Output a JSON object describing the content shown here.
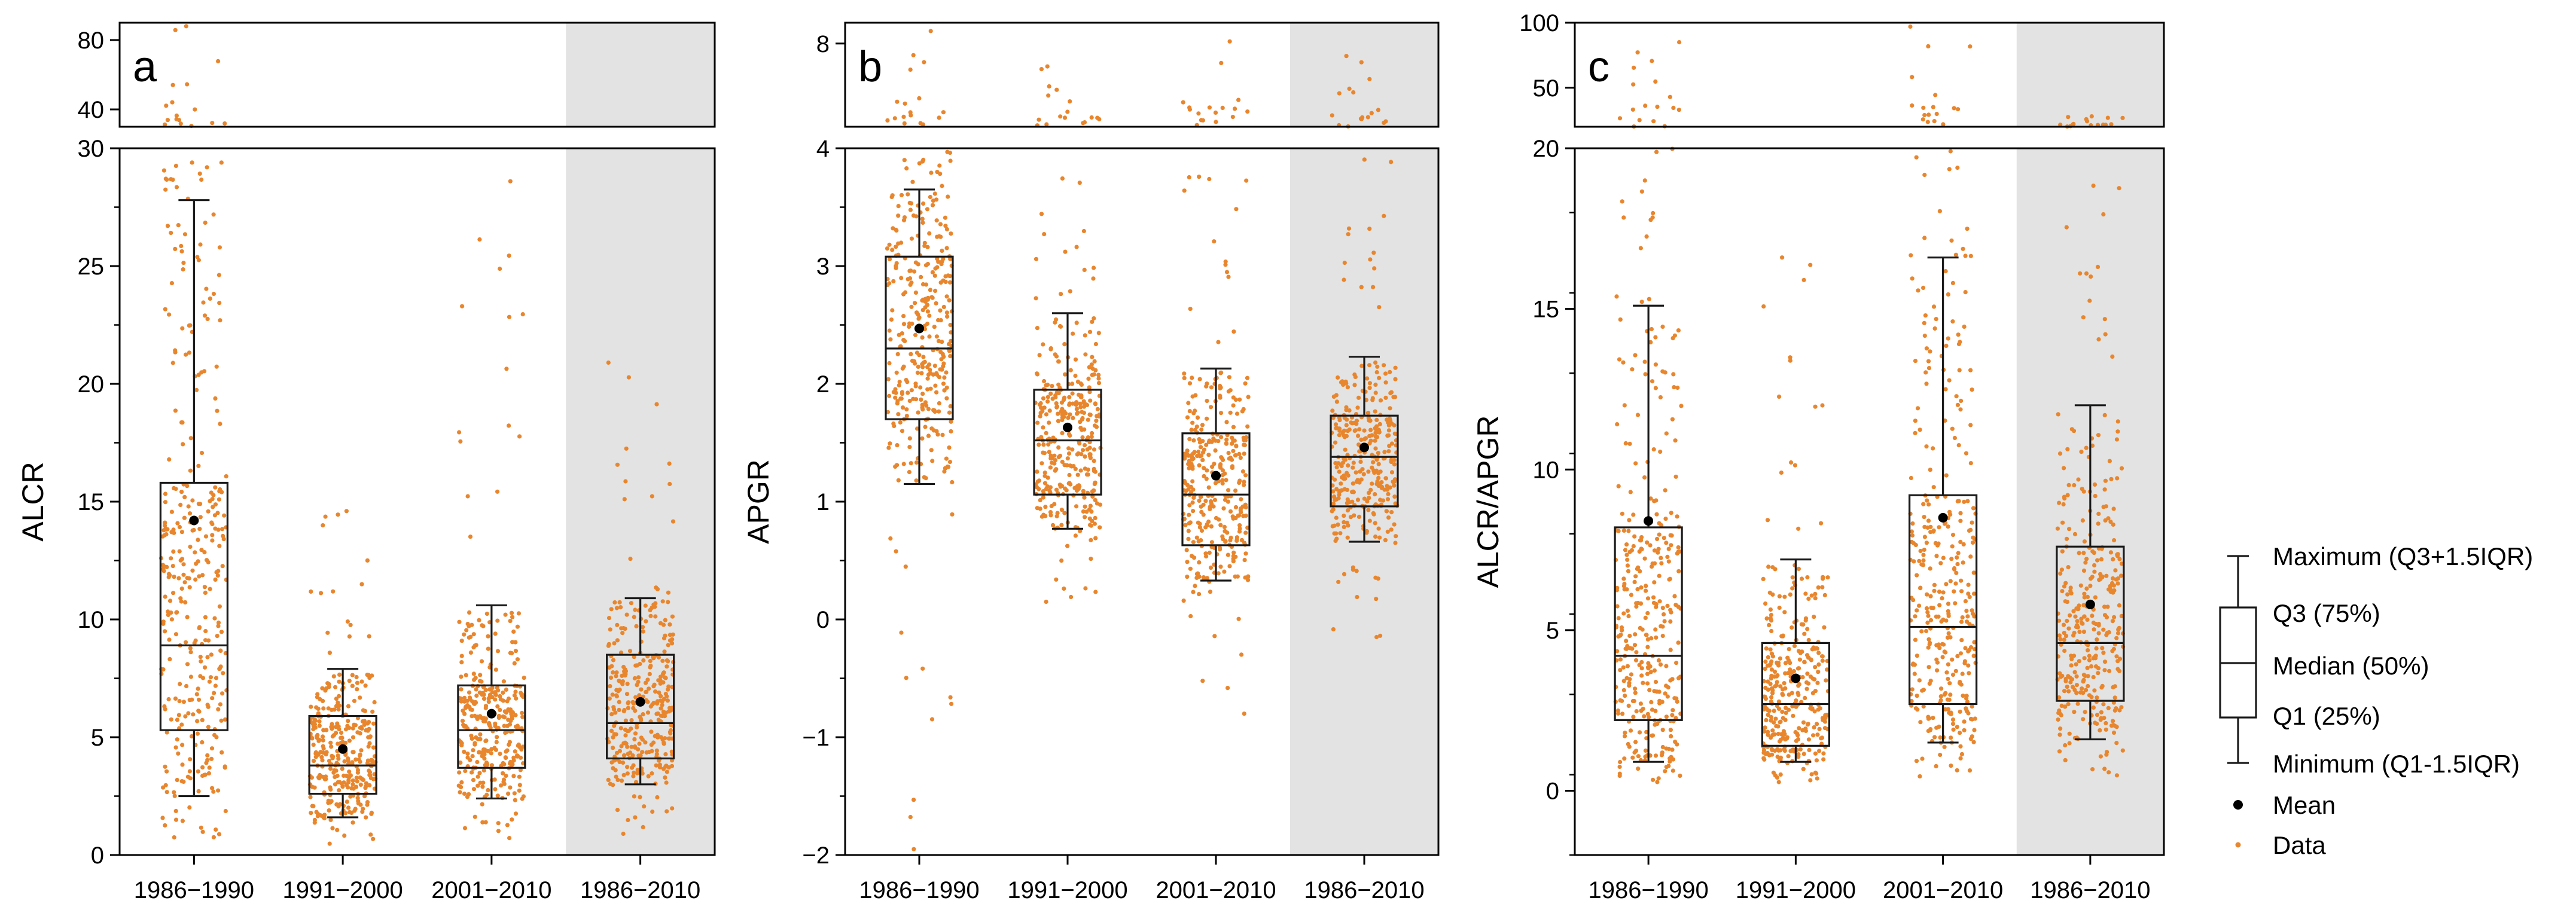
{
  "chart_data": [
    {
      "panel": "a",
      "type": "boxplot",
      "ylabel": "ALCR",
      "categories": [
        "1986−1990",
        "1991−2000",
        "2001−2010",
        "1986−2010"
      ],
      "highlight_category": "1986−2010",
      "lower_ylim": [
        0,
        30
      ],
      "lower_yticks": [
        0,
        5,
        10,
        15,
        20,
        25,
        30
      ],
      "lower_yticklabels": [
        "0",
        "5",
        "10",
        "15",
        "20",
        "25",
        "30"
      ],
      "upper_ylim": [
        30,
        90
      ],
      "upper_yticks": [
        40,
        80
      ],
      "upper_yticklabels": [
        "40",
        "80"
      ],
      "boxes": [
        {
          "min": 2.5,
          "q1": 5.3,
          "median": 8.9,
          "q3": 15.8,
          "max": 27.8,
          "mean": 14.2
        },
        {
          "min": 1.6,
          "q1": 2.6,
          "median": 3.8,
          "q3": 5.9,
          "max": 7.9,
          "mean": 4.5
        },
        {
          "min": 2.4,
          "q1": 3.7,
          "median": 5.3,
          "q3": 7.2,
          "max": 10.6,
          "mean": 6.0
        },
        {
          "min": 3.0,
          "q1": 4.1,
          "median": 5.6,
          "q3": 8.5,
          "max": 10.9,
          "mean": 6.5
        }
      ],
      "point_max": [
        88,
        14.6,
        28.6,
        20.9
      ]
    },
    {
      "panel": "b",
      "type": "boxplot",
      "ylabel": "APGR",
      "categories": [
        "1986−1990",
        "1991−2000",
        "2001−2010",
        "1986−2010"
      ],
      "highlight_category": "1986−2010",
      "lower_ylim": [
        -2,
        4
      ],
      "lower_yticks": [
        -2,
        -1,
        0,
        1,
        2,
        3,
        4
      ],
      "lower_yticklabels": [
        "−2",
        "−1",
        "0",
        "1",
        "2",
        "3",
        "4"
      ],
      "upper_ylim": [
        4,
        9
      ],
      "upper_yticks": [
        8
      ],
      "upper_yticklabels": [
        "8"
      ],
      "boxes": [
        {
          "min": 1.15,
          "q1": 1.7,
          "median": 2.3,
          "q3": 3.08,
          "max": 3.65,
          "mean": 2.47
        },
        {
          "min": 0.77,
          "q1": 1.06,
          "median": 1.52,
          "q3": 1.95,
          "max": 2.6,
          "mean": 1.63
        },
        {
          "min": 0.33,
          "q1": 0.63,
          "median": 1.06,
          "q3": 1.58,
          "max": 2.13,
          "mean": 1.22
        },
        {
          "min": 0.66,
          "q1": 0.96,
          "median": 1.38,
          "q3": 1.73,
          "max": 2.23,
          "mean": 1.46
        }
      ],
      "point_max": [
        8.6,
        6.9,
        8.1,
        7.4
      ],
      "point_min": [
        -1.95,
        0.15,
        -0.8,
        -0.15
      ]
    },
    {
      "panel": "c",
      "type": "boxplot",
      "ylabel": "ALCR/APGR",
      "categories": [
        "1986−1990",
        "1991−2000",
        "2001−2010",
        "1986−2010"
      ],
      "highlight_category": "1986−2010",
      "lower_ylim": [
        -2,
        20
      ],
      "lower_yticks": [
        0,
        5,
        10,
        15,
        20
      ],
      "lower_yticklabels": [
        "0",
        "5",
        "10",
        "15",
        "20"
      ],
      "upper_ylim": [
        20,
        100
      ],
      "upper_yticks": [
        50,
        100
      ],
      "upper_yticklabels": [
        "50",
        "100"
      ],
      "boxes": [
        {
          "min": 0.9,
          "q1": 2.2,
          "median": 4.2,
          "q3": 8.2,
          "max": 15.1,
          "mean": 8.4
        },
        {
          "min": 0.9,
          "q1": 1.4,
          "median": 2.7,
          "q3": 4.6,
          "max": 7.2,
          "mean": 3.5
        },
        {
          "min": 1.5,
          "q1": 2.7,
          "median": 5.1,
          "q3": 9.2,
          "max": 16.6,
          "mean": 8.5
        },
        {
          "min": 1.6,
          "q1": 2.8,
          "median": 4.6,
          "q3": 7.6,
          "max": 12.0,
          "mean": 5.8
        }
      ],
      "point_max": [
        85,
        16.6,
        97,
        28
      ]
    }
  ],
  "legend": {
    "max_label": "Maximum (Q3+1.5IQR)",
    "q3_label": "Q3 (75%)",
    "median_label": "Median (50%)",
    "q1_label": "Q1 (25%)",
    "min_label": "Minimum (Q1-1.5IQR)",
    "mean_label": "Mean",
    "data_label": "Data"
  },
  "colors": {
    "data_points": "#E8862E",
    "highlight_band": "#E3E3E3",
    "box_line": "#1a1a1a",
    "mean_marker": "#000000"
  }
}
